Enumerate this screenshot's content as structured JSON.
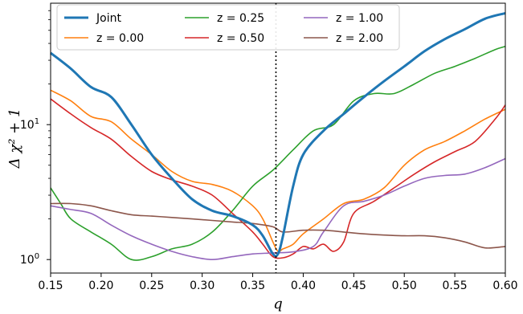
{
  "chart_data": {
    "type": "line",
    "xlabel": "q",
    "ylabel": "Δ χ² + 1",
    "xlim": [
      0.15,
      0.6
    ],
    "ylim_log10": [
      -0.1,
      1.9
    ],
    "yscale": "log",
    "x_ticks": [
      "0.15",
      "0.20",
      "0.25",
      "0.30",
      "0.35",
      "0.40",
      "0.45",
      "0.50",
      "0.55",
      "0.60"
    ],
    "y_ticks": [
      {
        "label_base": "10",
        "label_exp": "0",
        "value": 1
      },
      {
        "label_base": "10",
        "label_exp": "1",
        "value": 10
      }
    ],
    "vline": {
      "x": 0.373,
      "style": "dotted",
      "color": "#000000"
    },
    "legend": {
      "placement": "top-left",
      "columns": 3
    },
    "series": [
      {
        "name": "Joint",
        "color": "#1f77b4",
        "x": [
          0.15,
          0.17,
          0.19,
          0.21,
          0.23,
          0.25,
          0.27,
          0.29,
          0.31,
          0.33,
          0.35,
          0.36,
          0.37,
          0.375,
          0.38,
          0.39,
          0.4,
          0.42,
          0.44,
          0.46,
          0.48,
          0.5,
          0.52,
          0.54,
          0.56,
          0.58,
          0.6
        ],
        "y": [
          34,
          26,
          19,
          16,
          10,
          6,
          4,
          2.8,
          2.3,
          2.1,
          1.8,
          1.5,
          1.1,
          1.1,
          1.5,
          3.5,
          6,
          9,
          12,
          16,
          21,
          27,
          35,
          43,
          51,
          61,
          67
        ]
      },
      {
        "name": "z = 0.00",
        "color": "#ff7f0e",
        "x": [
          0.15,
          0.17,
          0.19,
          0.21,
          0.23,
          0.25,
          0.27,
          0.29,
          0.31,
          0.33,
          0.35,
          0.36,
          0.37,
          0.375,
          0.38,
          0.39,
          0.4,
          0.42,
          0.44,
          0.46,
          0.48,
          0.5,
          0.52,
          0.54,
          0.56,
          0.58,
          0.6
        ],
        "y": [
          18,
          15,
          11.5,
          10.5,
          7.8,
          6,
          4.5,
          3.8,
          3.6,
          3.2,
          2.5,
          2.0,
          1.35,
          1.15,
          1.2,
          1.3,
          1.55,
          2.0,
          2.6,
          2.8,
          3.4,
          5,
          6.5,
          7.5,
          9,
          11,
          13
        ]
      },
      {
        "name": "z = 0.25",
        "color": "#2ca02c",
        "x": [
          0.15,
          0.16,
          0.17,
          0.19,
          0.21,
          0.23,
          0.25,
          0.27,
          0.29,
          0.31,
          0.33,
          0.35,
          0.37,
          0.39,
          0.41,
          0.43,
          0.45,
          0.47,
          0.49,
          0.51,
          0.53,
          0.55,
          0.57,
          0.59,
          0.6
        ],
        "y": [
          3.4,
          2.6,
          2.0,
          1.6,
          1.3,
          1.0,
          1.05,
          1.2,
          1.3,
          1.6,
          2.3,
          3.5,
          4.6,
          6.5,
          9,
          10,
          15,
          17,
          17,
          20,
          24,
          27,
          31,
          36,
          38
        ]
      },
      {
        "name": "z = 0.50",
        "color": "#d62728",
        "x": [
          0.15,
          0.17,
          0.19,
          0.21,
          0.23,
          0.25,
          0.27,
          0.29,
          0.31,
          0.33,
          0.35,
          0.36,
          0.37,
          0.38,
          0.39,
          0.4,
          0.41,
          0.42,
          0.43,
          0.44,
          0.45,
          0.47,
          0.49,
          0.51,
          0.53,
          0.55,
          0.57,
          0.59,
          0.6
        ],
        "y": [
          15.5,
          12,
          9.5,
          7.8,
          5.8,
          4.5,
          3.9,
          3.5,
          3.0,
          2.2,
          1.6,
          1.3,
          1.05,
          1.03,
          1.1,
          1.25,
          1.2,
          1.3,
          1.15,
          1.35,
          2.2,
          2.7,
          3.4,
          4.3,
          5.3,
          6.3,
          7.5,
          11,
          14
        ]
      },
      {
        "name": "z = 1.00",
        "color": "#9467bd",
        "x": [
          0.15,
          0.17,
          0.19,
          0.21,
          0.23,
          0.25,
          0.27,
          0.29,
          0.31,
          0.33,
          0.35,
          0.37,
          0.39,
          0.41,
          0.42,
          0.44,
          0.46,
          0.48,
          0.5,
          0.52,
          0.54,
          0.56,
          0.58,
          0.6
        ],
        "y": [
          2.5,
          2.35,
          2.2,
          1.8,
          1.5,
          1.3,
          1.15,
          1.05,
          1.0,
          1.05,
          1.1,
          1.12,
          1.14,
          1.25,
          1.6,
          2.5,
          2.7,
          3.0,
          3.5,
          4.0,
          4.2,
          4.3,
          4.8,
          5.6
        ]
      },
      {
        "name": "z = 2.00",
        "color": "#8c564b",
        "x": [
          0.15,
          0.17,
          0.19,
          0.21,
          0.23,
          0.25,
          0.27,
          0.29,
          0.31,
          0.33,
          0.35,
          0.37,
          0.38,
          0.4,
          0.42,
          0.44,
          0.46,
          0.48,
          0.5,
          0.52,
          0.54,
          0.56,
          0.58,
          0.6
        ],
        "y": [
          2.6,
          2.6,
          2.5,
          2.3,
          2.15,
          2.1,
          2.05,
          2.0,
          1.95,
          1.9,
          1.85,
          1.75,
          1.6,
          1.65,
          1.65,
          1.6,
          1.55,
          1.52,
          1.5,
          1.5,
          1.45,
          1.35,
          1.22,
          1.25
        ]
      }
    ]
  }
}
